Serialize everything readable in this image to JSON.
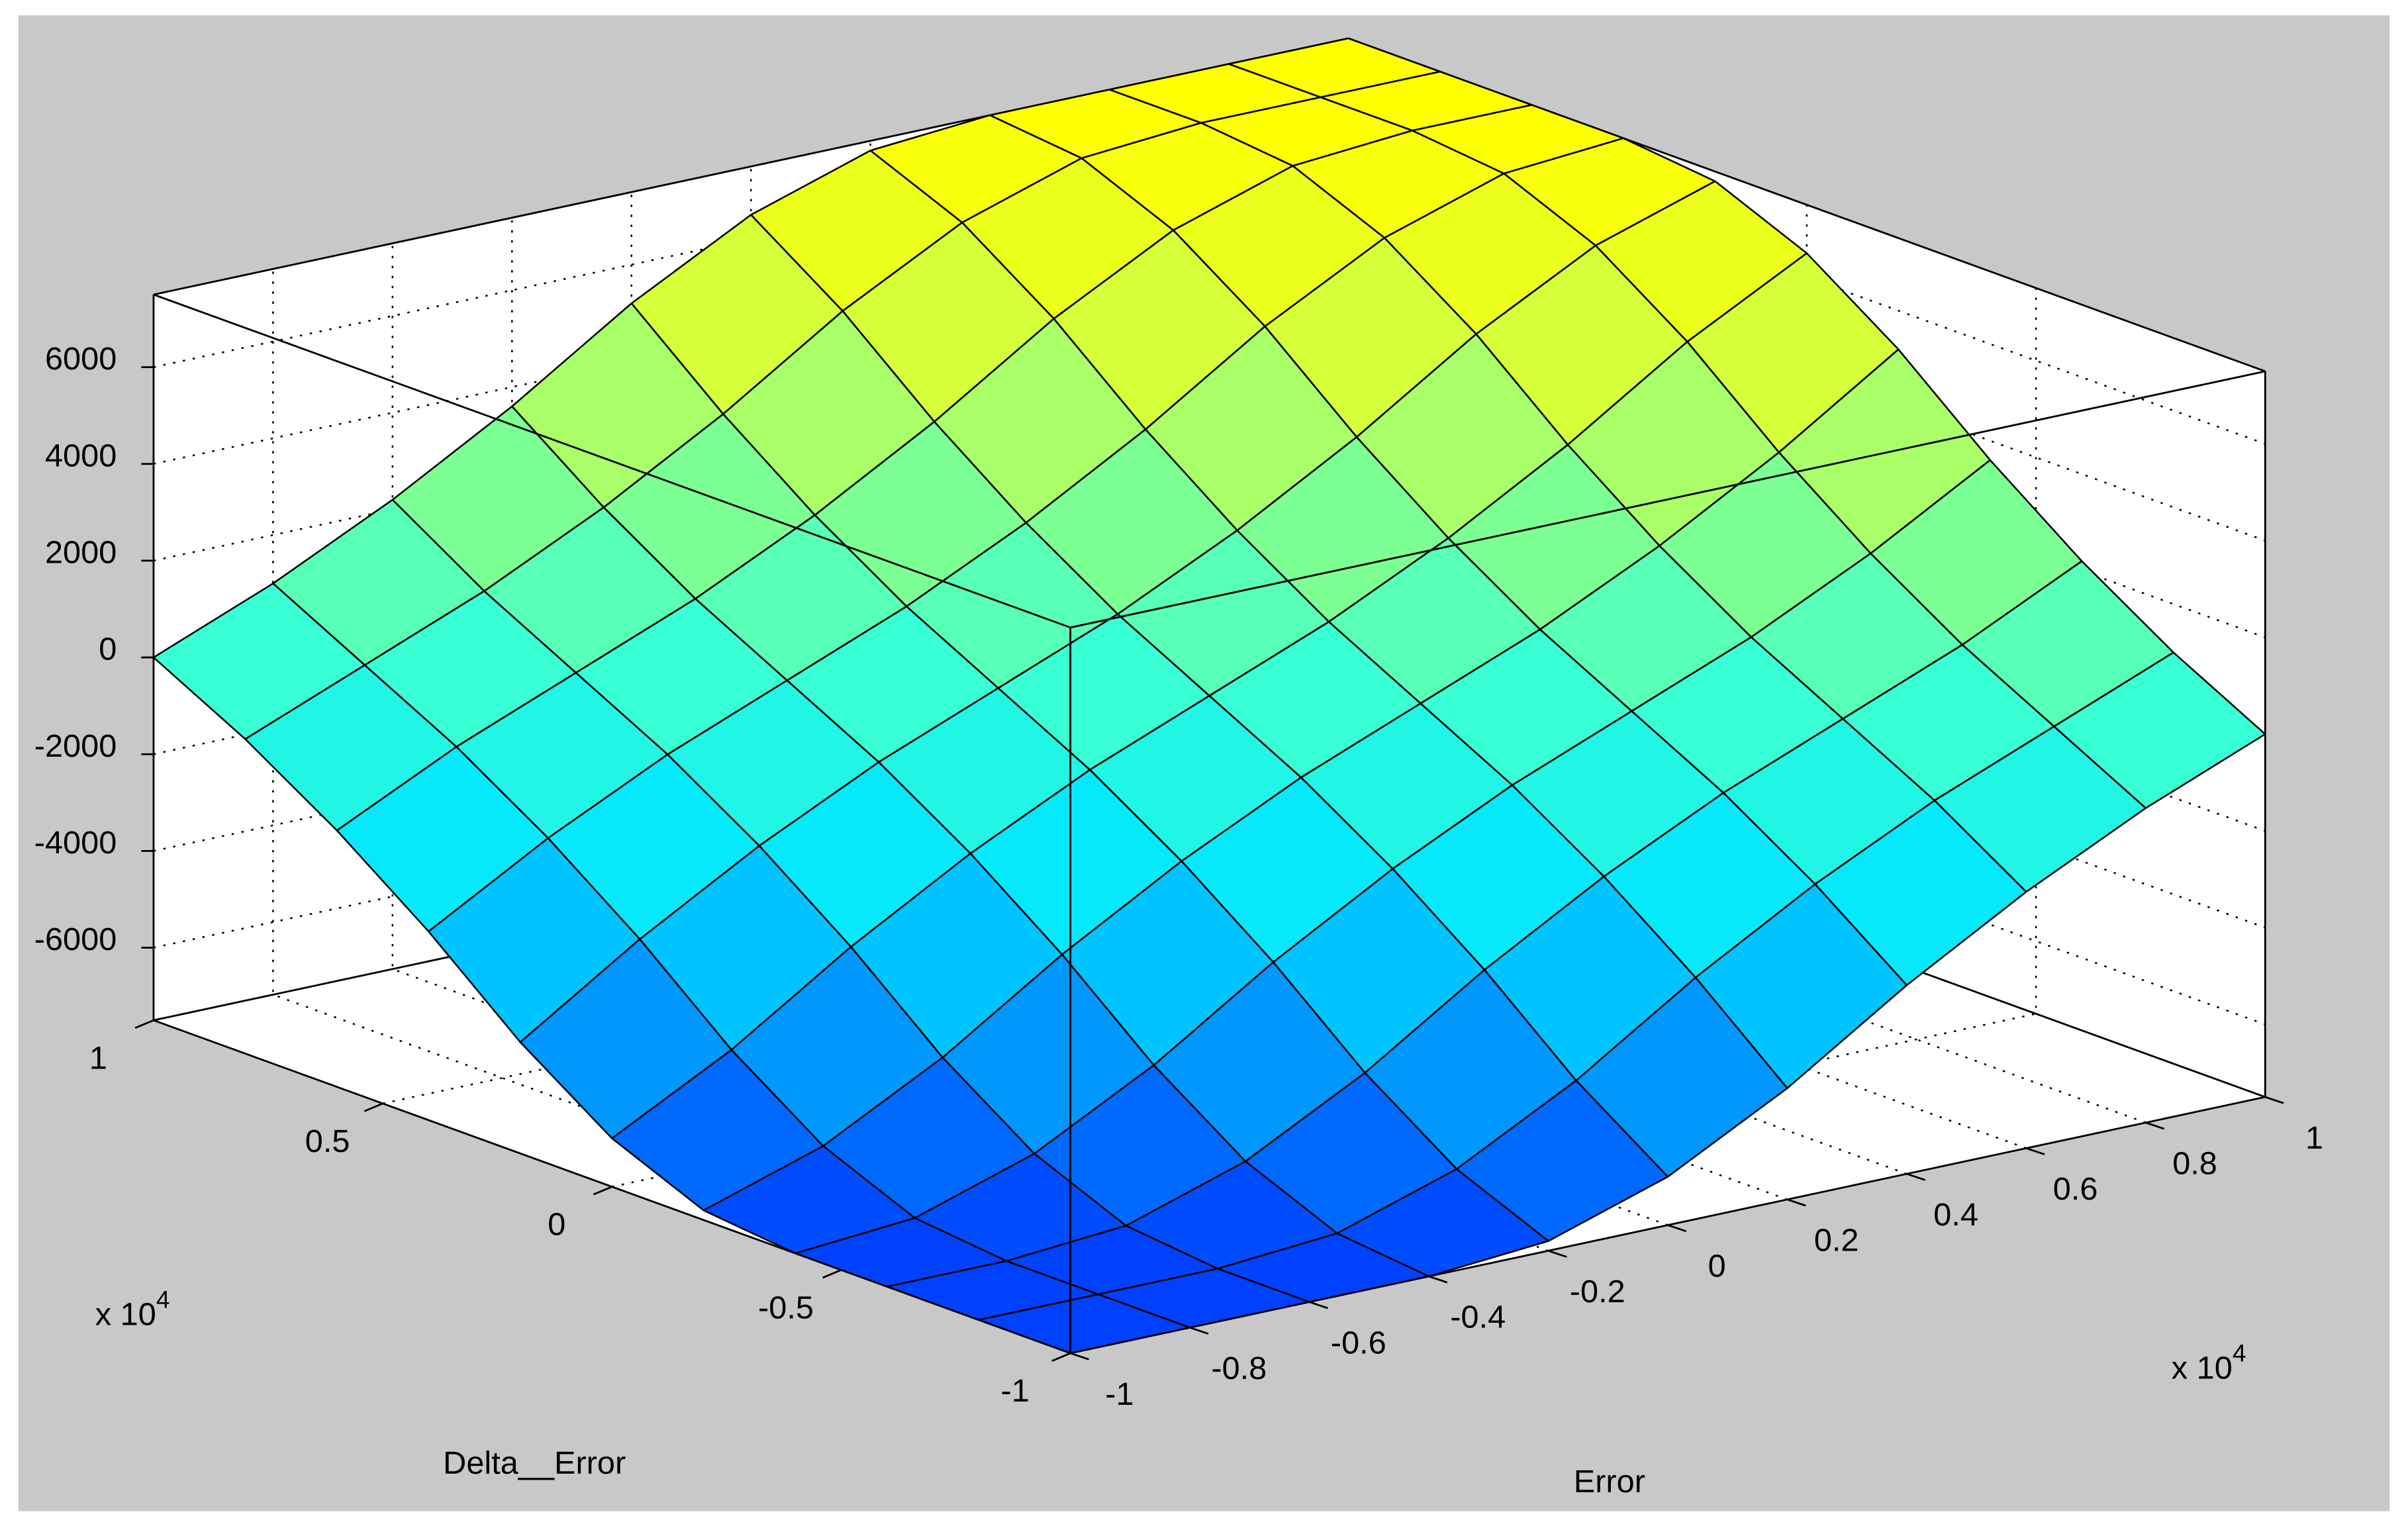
{
  "chart_data": {
    "type": "surface",
    "x_label": "Error",
    "y_label": "Delta__Error",
    "x_multiplier": {
      "base": "x 10",
      "exponent": "4"
    },
    "y_multiplier": {
      "base": "x 10",
      "exponent": "4"
    },
    "x": [
      -1,
      -0.8,
      -0.6,
      -0.4,
      -0.2,
      0,
      0.2,
      0.4,
      0.6,
      0.8,
      1
    ],
    "y": [
      -1,
      -0.8,
      -0.6,
      -0.4,
      -0.2,
      0,
      0.2,
      0.4,
      0.6,
      0.8,
      1
    ],
    "z": [
      [
        -7500,
        -7500,
        -7500,
        -7500,
        -7300,
        -6500,
        -5200,
        -3600,
        -2200,
        -1000,
        0
      ],
      [
        -7500,
        -7500,
        -7500,
        -7300,
        -6500,
        -5200,
        -3600,
        -2200,
        -1000,
        0,
        1000
      ],
      [
        -7500,
        -7500,
        -7300,
        -6500,
        -5200,
        -3600,
        -2200,
        -1000,
        0,
        1000,
        2200
      ],
      [
        -7500,
        -7300,
        -6500,
        -5200,
        -3600,
        -2200,
        -1000,
        0,
        1000,
        2200,
        3600
      ],
      [
        -7300,
        -6500,
        -5200,
        -3600,
        -2200,
        -1000,
        0,
        1000,
        2200,
        3600,
        5200
      ],
      [
        -6500,
        -5200,
        -3600,
        -2200,
        -1000,
        0,
        1000,
        2200,
        3600,
        5200,
        6500
      ],
      [
        -5200,
        -3600,
        -2200,
        -1000,
        0,
        1000,
        2200,
        3600,
        5200,
        6500,
        7300
      ],
      [
        -3600,
        -2200,
        -1000,
        0,
        1000,
        2200,
        3600,
        5200,
        6500,
        7300,
        7500
      ],
      [
        -2200,
        -1000,
        0,
        1000,
        2200,
        3600,
        5200,
        6500,
        7300,
        7500,
        7500
      ],
      [
        -1000,
        0,
        1000,
        2200,
        3600,
        5200,
        6500,
        7300,
        7500,
        7500,
        7500
      ],
      [
        0,
        1000,
        2200,
        3600,
        5200,
        6500,
        7300,
        7500,
        7500,
        7500,
        7500
      ]
    ],
    "xlim": [
      -1,
      1
    ],
    "ylim": [
      -1,
      1
    ],
    "zlim": [
      -7500,
      7500
    ],
    "xticks": [
      -1,
      -0.8,
      -0.6,
      -0.4,
      -0.2,
      0,
      0.2,
      0.4,
      0.6,
      0.8,
      1
    ],
    "yticks": [
      -1,
      -0.5,
      0,
      0.5,
      1
    ],
    "zticks": [
      -6000,
      -4000,
      -2000,
      0,
      2000,
      4000,
      6000
    ],
    "grid": true,
    "colormap": [
      "#0040ff",
      "#009cff",
      "#00e6ff",
      "#38ffd4",
      "#84ff8c",
      "#d2ff3c",
      "#ffff00"
    ]
  }
}
